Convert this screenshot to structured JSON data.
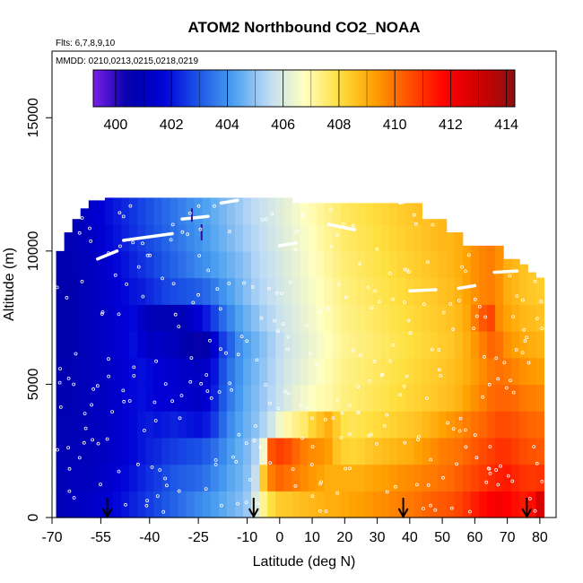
{
  "chart_data": {
    "type": "heatmap",
    "title": "ATOM2 Northbound CO2_NOAA",
    "flights_note": "Flts: 6,7,8,9,10",
    "dates_note": "MMDD: 0210,0213,0215,0218,0219",
    "xlabel": "Latitude (deg N)",
    "ylabel": "Altitude (m)",
    "xlim": [
      -70,
      85
    ],
    "ylim": [
      0,
      17500
    ],
    "xticks": [
      -70,
      -55,
      -40,
      -25,
      -10,
      0,
      10,
      20,
      30,
      40,
      50,
      60,
      70,
      80
    ],
    "yticks": [
      0,
      5000,
      10000,
      15000
    ],
    "colorbar": {
      "range": [
        399.2,
        414.3
      ],
      "ticks": [
        400,
        402,
        404,
        406,
        408,
        410,
        412,
        414
      ],
      "colors": [
        "#7b1fe8",
        "#0000a8",
        "#0000d8",
        "#1c56e6",
        "#4aa0f0",
        "#c0dcf5",
        "#ffffc0",
        "#ffe040",
        "#ffa000",
        "#ff5000",
        "#ff0000",
        "#d00000",
        "#8b1010"
      ]
    },
    "arrows_lat": [
      -53,
      -8,
      38,
      76
    ],
    "columns": [
      {
        "lat": -67.5,
        "top": 10000,
        "vals": [
          400.9,
          400.8,
          400.8,
          400.8,
          400.7,
          400.7,
          400.6,
          400.6,
          400.6,
          400.7
        ]
      },
      {
        "lat": -65,
        "top": 10700,
        "vals": [
          401.0,
          400.9,
          400.8,
          400.8,
          400.7,
          400.7,
          400.6,
          400.6,
          400.6,
          400.7,
          400.8
        ]
      },
      {
        "lat": -62.5,
        "top": 11200,
        "vals": [
          401.1,
          401.0,
          400.9,
          400.8,
          400.8,
          400.8,
          400.7,
          400.7,
          400.7,
          400.8,
          400.9
        ]
      },
      {
        "lat": -60,
        "top": 11600,
        "vals": [
          401.2,
          401.0,
          400.9,
          400.9,
          400.9,
          400.9,
          400.8,
          400.8,
          400.8,
          400.9,
          401.0,
          401.1
        ]
      },
      {
        "lat": -57.5,
        "top": 11900,
        "vals": [
          401.3,
          401.1,
          401.0,
          401.0,
          401.0,
          401.0,
          401.0,
          401.0,
          401.0,
          401.1,
          401.2,
          401.4
        ]
      },
      {
        "lat": -55,
        "top": 11900,
        "vals": [
          401.4,
          401.2,
          401.1,
          401.1,
          401.1,
          401.1,
          401.1,
          401.1,
          401.2,
          401.3,
          401.5,
          401.6
        ]
      },
      {
        "lat": -52.5,
        "top": 12000,
        "vals": [
          401.6,
          401.4,
          401.2,
          401.2,
          401.2,
          401.2,
          401.3,
          401.3,
          401.4,
          401.5,
          401.8,
          401.9
        ]
      },
      {
        "lat": -50,
        "top": 12000,
        "vals": [
          401.8,
          401.6,
          401.4,
          401.4,
          401.4,
          401.4,
          401.5,
          401.5,
          401.6,
          401.8,
          402.0,
          402.1
        ]
      },
      {
        "lat": -47.5,
        "top": 12000,
        "vals": [
          402.0,
          401.8,
          401.6,
          401.6,
          401.6,
          401.6,
          401.7,
          401.7,
          401.8,
          402.0,
          402.2,
          402.3
        ]
      },
      {
        "lat": -45,
        "top": 12000,
        "vals": [
          402.2,
          402.0,
          401.8,
          401.8,
          401.8,
          401.8,
          401.9,
          401.8,
          402.0,
          402.2,
          402.4,
          402.5
        ]
      },
      {
        "lat": -42.5,
        "top": 12000,
        "vals": [
          402.4,
          402.2,
          402.0,
          402.0,
          401.9,
          401.9,
          401.6,
          401.3,
          402.1,
          402.4,
          402.6,
          402.7
        ]
      },
      {
        "lat": -40,
        "top": 12000,
        "vals": [
          402.6,
          402.4,
          402.2,
          402.1,
          401.8,
          401.8,
          401.2,
          400.9,
          402.3,
          402.6,
          402.8,
          402.9
        ]
      },
      {
        "lat": -37.5,
        "top": 12000,
        "vals": [
          402.8,
          402.6,
          402.3,
          402.0,
          401.7,
          401.6,
          401.2,
          400.8,
          402.5,
          402.8,
          403.0,
          403.1
        ]
      },
      {
        "lat": -35,
        "top": 12000,
        "vals": [
          403.0,
          402.8,
          402.5,
          402.1,
          401.6,
          401.5,
          401.1,
          400.8,
          402.7,
          403.0,
          403.2,
          403.3
        ]
      },
      {
        "lat": -32.5,
        "top": 12000,
        "vals": [
          403.2,
          403.0,
          402.6,
          402.2,
          401.5,
          401.4,
          401.0,
          400.8,
          402.8,
          403.2,
          403.4,
          403.5
        ]
      },
      {
        "lat": -30,
        "top": 12000,
        "vals": [
          403.4,
          403.1,
          402.7,
          402.1,
          401.4,
          401.3,
          400.7,
          400.8,
          402.9,
          403.4,
          403.6,
          403.7
        ]
      },
      {
        "lat": -27.5,
        "top": 12000,
        "vals": [
          403.6,
          403.2,
          402.8,
          402.0,
          401.3,
          401.2,
          400.5,
          401.2,
          403.0,
          403.6,
          403.8,
          403.9
        ]
      },
      {
        "lat": -25,
        "top": 12000,
        "vals": [
          403.8,
          403.3,
          402.9,
          401.9,
          401.2,
          401.1,
          400.4,
          401.6,
          403.1,
          403.8,
          404.0,
          404.1
        ]
      },
      {
        "lat": -22.5,
        "top": 12000,
        "vals": [
          404.0,
          403.5,
          403.1,
          402.1,
          401.5,
          401.3,
          400.6,
          402.1,
          403.3,
          404.0,
          404.2,
          404.3
        ]
      },
      {
        "lat": -20,
        "top": 12000,
        "vals": [
          404.2,
          403.8,
          403.4,
          402.6,
          402.2,
          402.0,
          401.5,
          402.7,
          403.6,
          404.2,
          404.4,
          404.5
        ]
      },
      {
        "lat": -17.5,
        "top": 12000,
        "vals": [
          404.4,
          404.1,
          403.8,
          403.3,
          403.0,
          402.9,
          402.6,
          403.3,
          404.0,
          404.4,
          404.6,
          404.7
        ]
      },
      {
        "lat": -15,
        "top": 12000,
        "vals": [
          404.6,
          404.4,
          404.2,
          403.9,
          403.6,
          403.5,
          403.2,
          403.8,
          404.3,
          404.6,
          404.8,
          404.9
        ]
      },
      {
        "lat": -12.5,
        "top": 12000,
        "vals": [
          404.8,
          404.6,
          404.5,
          404.3,
          404.1,
          404.0,
          403.9,
          404.3,
          404.6,
          404.8,
          405.0,
          405.1
        ]
      },
      {
        "lat": -10,
        "top": 12000,
        "vals": [
          405.1,
          404.9,
          404.8,
          404.6,
          404.5,
          404.4,
          404.3,
          404.6,
          404.9,
          405.0,
          405.2,
          405.3
        ]
      },
      {
        "lat": -7.5,
        "top": 12000,
        "vals": [
          406.0,
          405.6,
          405.3,
          404.9,
          404.8,
          404.7,
          404.6,
          404.9,
          405.2,
          405.3,
          405.4,
          405.5
        ]
      },
      {
        "lat": -5,
        "top": 12000,
        "vals": [
          407.2,
          408.4,
          406.5,
          405.3,
          405.1,
          405.0,
          404.9,
          405.2,
          405.4,
          405.5,
          405.6,
          405.7
        ]
      },
      {
        "lat": -2.5,
        "top": 12000,
        "vals": [
          408.0,
          409.8,
          410.5,
          405.8,
          405.4,
          405.3,
          405.2,
          405.4,
          405.6,
          405.7,
          405.8,
          405.9
        ]
      },
      {
        "lat": 0,
        "top": 12000,
        "vals": [
          408.4,
          410.2,
          410.8,
          406.5,
          405.7,
          405.6,
          405.5,
          405.7,
          405.8,
          405.9,
          406.0,
          406.1
        ]
      },
      {
        "lat": 2.5,
        "top": 12000,
        "vals": [
          408.5,
          410.0,
          410.6,
          407.0,
          406.0,
          405.9,
          405.8,
          405.9,
          406.0,
          406.1,
          406.2,
          406.3
        ]
      },
      {
        "lat": 5,
        "top": 11800,
        "vals": [
          408.6,
          409.8,
          410.2,
          407.3,
          406.3,
          406.1,
          406.0,
          406.1,
          406.2,
          406.3,
          406.4,
          406.5
        ]
      },
      {
        "lat": 7.5,
        "top": 11800,
        "vals": [
          408.7,
          409.6,
          409.8,
          407.6,
          406.5,
          406.3,
          406.2,
          406.3,
          406.4,
          406.5,
          406.6,
          406.7
        ]
      },
      {
        "lat": 10,
        "top": 11800,
        "vals": [
          408.8,
          409.4,
          409.6,
          408.2,
          406.7,
          406.5,
          406.4,
          406.5,
          406.6,
          406.7,
          406.8,
          406.9
        ]
      },
      {
        "lat": 12.5,
        "top": 11800,
        "vals": [
          408.9,
          409.2,
          409.5,
          408.6,
          406.9,
          406.7,
          406.6,
          406.7,
          406.8,
          406.9,
          407.0,
          407.1
        ]
      },
      {
        "lat": 15,
        "top": 11800,
        "vals": [
          409.0,
          409.0,
          409.3,
          409.0,
          407.0,
          406.9,
          406.8,
          406.9,
          407.0,
          407.1,
          407.2,
          407.3
        ]
      },
      {
        "lat": 17.5,
        "top": 11800,
        "vals": [
          409.0,
          409.0,
          408.6,
          408.4,
          407.2,
          407.1,
          407.0,
          407.1,
          407.2,
          407.3,
          407.4,
          407.5
        ]
      },
      {
        "lat": 20,
        "top": 11800,
        "vals": [
          409.1,
          409.0,
          408.3,
          407.9,
          407.4,
          407.3,
          407.2,
          407.3,
          407.4,
          407.5,
          407.6,
          407.7
        ]
      },
      {
        "lat": 22.5,
        "top": 11800,
        "vals": [
          409.2,
          409.0,
          408.2,
          407.8,
          407.5,
          407.4,
          407.3,
          407.4,
          407.5,
          407.6,
          407.7,
          407.8
        ]
      },
      {
        "lat": 25,
        "top": 11800,
        "vals": [
          409.3,
          409.0,
          408.3,
          407.9,
          407.6,
          407.5,
          407.4,
          407.5,
          407.6,
          407.7,
          407.8,
          407.9
        ]
      },
      {
        "lat": 27.5,
        "top": 11800,
        "vals": [
          409.4,
          409.1,
          408.5,
          408.0,
          407.7,
          407.6,
          407.5,
          407.6,
          407.7,
          407.8,
          407.9,
          408.0
        ]
      },
      {
        "lat": 30,
        "top": 11800,
        "vals": [
          409.5,
          409.2,
          408.6,
          408.1,
          407.8,
          407.7,
          407.6,
          407.7,
          407.8,
          407.9,
          408.0,
          408.1
        ]
      },
      {
        "lat": 32.5,
        "top": 11800,
        "vals": [
          409.6,
          409.3,
          408.7,
          408.2,
          407.9,
          407.8,
          407.7,
          407.8,
          407.9,
          408.0,
          408.1,
          408.2
        ]
      },
      {
        "lat": 35,
        "top": 11800,
        "vals": [
          409.7,
          409.4,
          408.8,
          408.3,
          408.0,
          407.9,
          407.8,
          407.9,
          408.0,
          408.1,
          408.2,
          408.3
        ]
      },
      {
        "lat": 37.5,
        "top": 11800,
        "vals": [
          409.8,
          409.5,
          408.9,
          408.4,
          408.1,
          408.0,
          407.9,
          408.0,
          408.1,
          408.2,
          408.3,
          408.4
        ]
      },
      {
        "lat": 40,
        "top": 11800,
        "vals": [
          409.9,
          409.6,
          409.0,
          408.5,
          408.2,
          408.1,
          408.0,
          408.1,
          408.2,
          408.3,
          408.4,
          408.5
        ]
      },
      {
        "lat": 42.5,
        "top": 11800,
        "vals": [
          410.0,
          409.7,
          409.2,
          408.6,
          408.3,
          408.2,
          408.1,
          408.2,
          408.3,
          408.4,
          408.5,
          408.6
        ]
      },
      {
        "lat": 45,
        "top": 11200,
        "vals": [
          410.2,
          409.8,
          409.4,
          408.8,
          408.4,
          408.3,
          408.2,
          408.3,
          408.4,
          408.5,
          408.6
        ]
      },
      {
        "lat": 47.5,
        "top": 11200,
        "vals": [
          410.3,
          409.9,
          409.6,
          409.0,
          408.5,
          408.4,
          408.3,
          408.4,
          408.5,
          408.6,
          408.7
        ]
      },
      {
        "lat": 50,
        "top": 11200,
        "vals": [
          410.4,
          410.0,
          409.8,
          409.2,
          408.6,
          408.5,
          408.4,
          408.5,
          408.6,
          408.7,
          408.8
        ]
      },
      {
        "lat": 52.5,
        "top": 10700,
        "vals": [
          410.5,
          410.1,
          409.9,
          409.4,
          408.7,
          408.6,
          408.5,
          408.6,
          408.7,
          408.8
        ]
      },
      {
        "lat": 55,
        "top": 10700,
        "vals": [
          410.7,
          410.3,
          410.0,
          409.6,
          408.9,
          408.8,
          408.7,
          408.8,
          408.9,
          409.0
        ]
      },
      {
        "lat": 57.5,
        "top": 10200,
        "vals": [
          411.0,
          410.5,
          410.2,
          409.8,
          409.2,
          409.0,
          409.0,
          409.1,
          409.2
        ]
      },
      {
        "lat": 60,
        "top": 10200,
        "vals": [
          411.3,
          410.7,
          410.4,
          410.0,
          409.5,
          409.3,
          409.4,
          409.8,
          409.5
        ]
      },
      {
        "lat": 62.5,
        "top": 10200,
        "vals": [
          411.6,
          410.9,
          410.6,
          410.2,
          409.8,
          409.6,
          409.8,
          410.4,
          409.7
        ]
      },
      {
        "lat": 65,
        "top": 10200,
        "vals": [
          411.9,
          411.1,
          410.8,
          410.4,
          410.1,
          409.9,
          410.2,
          410.7,
          409.8
        ]
      },
      {
        "lat": 67.5,
        "top": 10200,
        "vals": [
          412.0,
          411.3,
          411.0,
          410.6,
          410.2,
          410.0,
          410.0,
          409.6,
          409.5
        ]
      },
      {
        "lat": 70,
        "top": 9700,
        "vals": [
          411.8,
          411.4,
          411.0,
          410.6,
          410.2,
          409.9,
          409.5,
          409.2,
          409.0
        ]
      },
      {
        "lat": 72.5,
        "top": 9700,
        "vals": [
          411.6,
          411.2,
          410.8,
          410.5,
          410.1,
          409.7,
          409.3,
          409.0,
          408.8
        ]
      },
      {
        "lat": 75,
        "top": 9500,
        "vals": [
          411.4,
          411.0,
          410.6,
          410.3,
          409.9,
          409.5,
          409.1,
          408.8,
          408.6
        ]
      },
      {
        "lat": 77.5,
        "top": 9200,
        "vals": [
          411.6,
          410.9,
          410.5,
          410.2,
          409.8,
          409.4,
          409.0,
          408.7,
          408.5
        ]
      },
      {
        "lat": 80,
        "top": 9000,
        "vals": [
          412.8,
          411.0,
          410.4,
          410.1,
          409.7,
          409.3,
          408.9,
          408.6,
          408.4
        ]
      }
    ],
    "flight_tracks": [
      {
        "lat": [
          -66,
          -64
        ],
        "alt": [
          11800,
          12000
        ]
      },
      {
        "lat": [
          -56,
          -50
        ],
        "alt": [
          9700,
          10000
        ]
      },
      {
        "lat": [
          -48,
          -33
        ],
        "alt": [
          10400,
          10650
        ]
      },
      {
        "lat": [
          -30,
          -22
        ],
        "alt": [
          11200,
          11300
        ]
      },
      {
        "lat": [
          -18,
          -13
        ],
        "alt": [
          11800,
          11900
        ]
      },
      {
        "lat": [
          0,
          5
        ],
        "alt": [
          10200,
          10300
        ]
      },
      {
        "lat": [
          15,
          23
        ],
        "alt": [
          11000,
          10800
        ]
      },
      {
        "lat": [
          37,
          40
        ],
        "alt": [
          11800,
          11900
        ]
      },
      {
        "lat": [
          40,
          48
        ],
        "alt": [
          8500,
          8550
        ]
      },
      {
        "lat": [
          55,
          60
        ],
        "alt": [
          8600,
          8700
        ]
      },
      {
        "lat": [
          66,
          73
        ],
        "alt": [
          9200,
          9250
        ]
      }
    ],
    "purple_marks": [
      {
        "lat": -27,
        "alt": [
          11100,
          11600
        ]
      },
      {
        "lat": -24,
        "alt": [
          10400,
          11000
        ]
      }
    ]
  }
}
